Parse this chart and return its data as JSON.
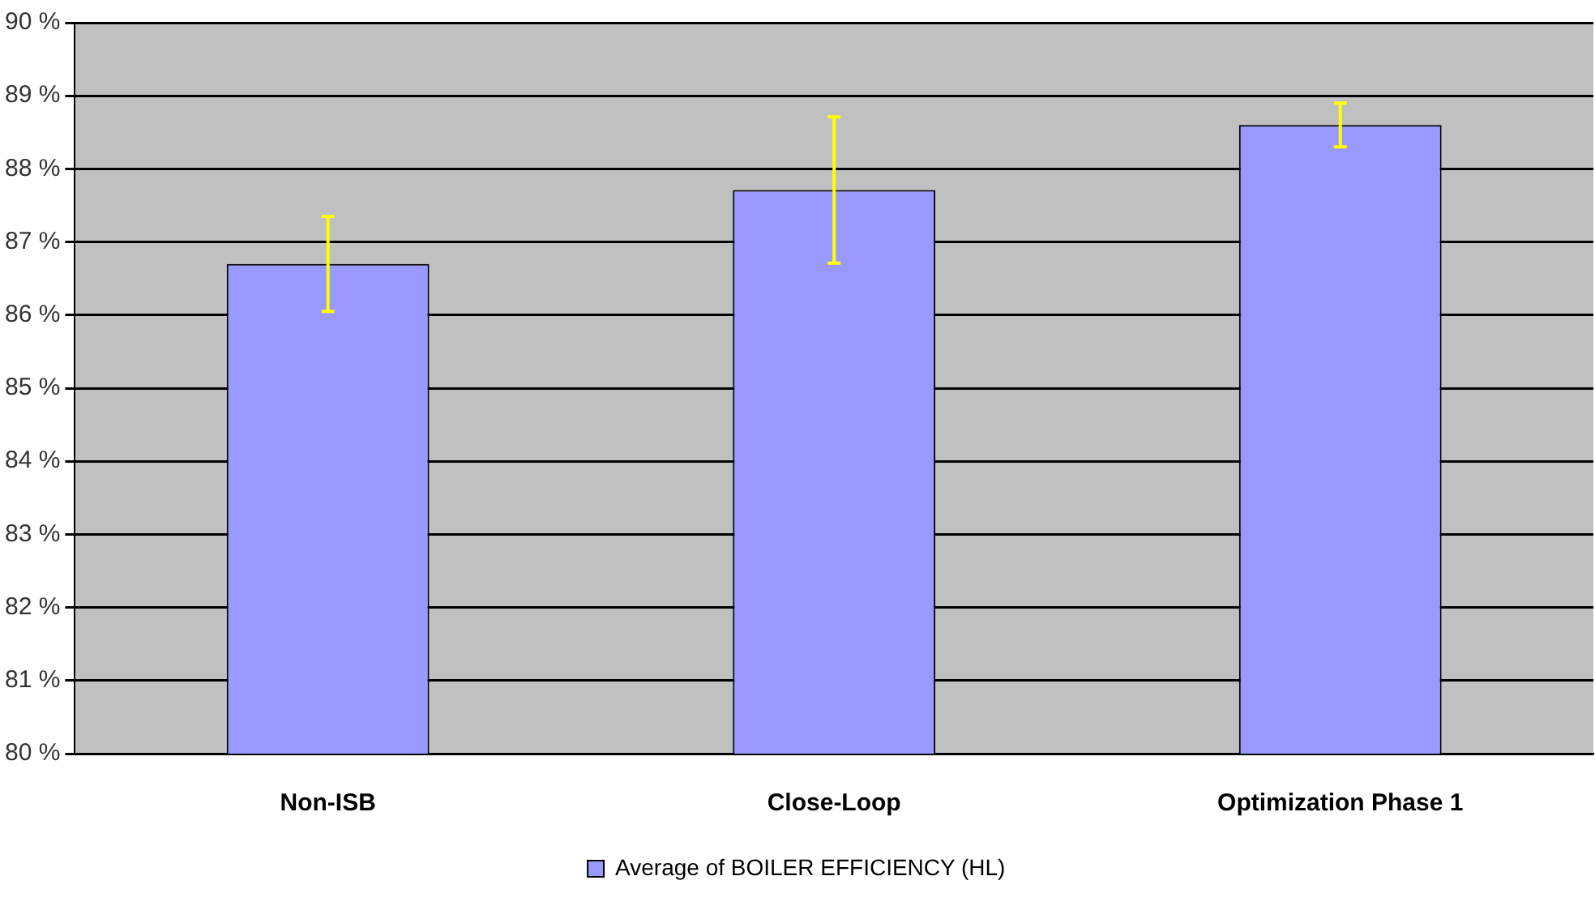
{
  "chart_data": {
    "type": "bar",
    "categories": [
      "Non-ISB",
      "Close-Loop",
      "Optimization Phase 1"
    ],
    "series": [
      {
        "name": "Average of BOILER EFFICIENCY (HL)",
        "color": "#9999ff",
        "values": [
          86.7,
          87.71,
          88.6
        ],
        "errors": [
          0.65,
          1.0,
          0.3
        ]
      }
    ],
    "ylim": [
      80,
      90
    ],
    "yticks": [
      {
        "value": 80,
        "label": "80 %"
      },
      {
        "value": 81,
        "label": "81 %"
      },
      {
        "value": 82,
        "label": "82 %"
      },
      {
        "value": 83,
        "label": "83 %"
      },
      {
        "value": 84,
        "label": "84 %"
      },
      {
        "value": 85,
        "label": "85 %"
      },
      {
        "value": 86,
        "label": "86 %"
      },
      {
        "value": 87,
        "label": "87 %"
      },
      {
        "value": 88,
        "label": "88 %"
      },
      {
        "value": 89,
        "label": "89 %"
      },
      {
        "value": 90,
        "label": "90 %"
      }
    ],
    "grid": "y",
    "legend": "bottom"
  }
}
